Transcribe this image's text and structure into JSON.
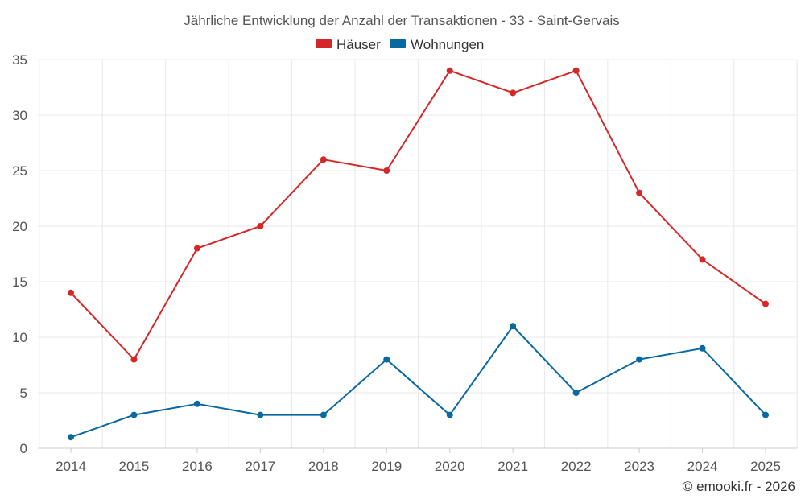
{
  "chart_data": {
    "type": "line",
    "title": "Jährliche Entwicklung der Anzahl der Transaktionen - 33 - Saint-Gervais",
    "categories": [
      "2014",
      "2015",
      "2016",
      "2017",
      "2018",
      "2019",
      "2020",
      "2021",
      "2022",
      "2023",
      "2024",
      "2025"
    ],
    "series": [
      {
        "name": "Häuser",
        "color": "#d62728",
        "values": [
          14,
          8,
          18,
          20,
          26,
          25,
          34,
          32,
          34,
          23,
          17,
          13
        ]
      },
      {
        "name": "Wohnungen",
        "color": "#0868a0",
        "values": [
          1,
          3,
          4,
          3,
          3,
          8,
          3,
          11,
          5,
          8,
          9,
          3
        ]
      }
    ],
    "ylim": [
      0,
      35
    ],
    "yticks": [
      0,
      5,
      10,
      15,
      20,
      25,
      30,
      35
    ],
    "xlabel": "",
    "ylabel": "",
    "grid": true,
    "legend_position": "top-center"
  },
  "credit": "© emooki.fr - 2026"
}
